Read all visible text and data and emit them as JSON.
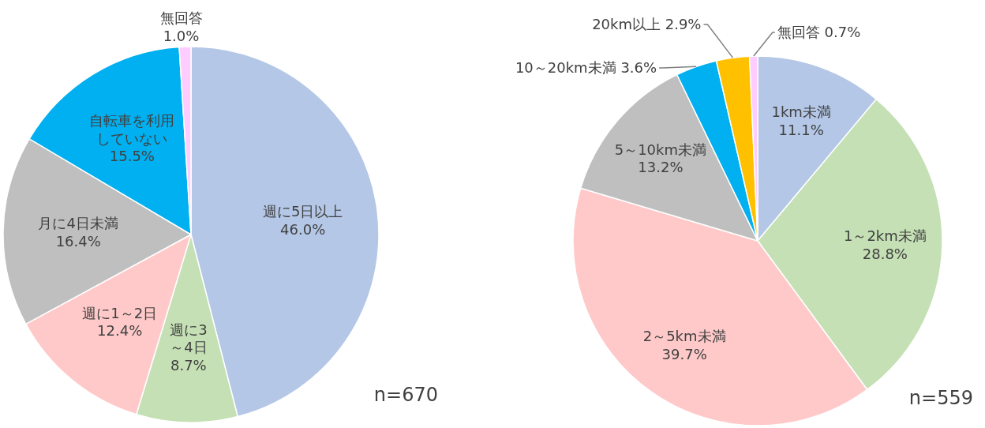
{
  "chart_data": [
    {
      "type": "pie",
      "categories": [
        "週に5日以上",
        "週に3～4日",
        "週に1～2日",
        "月に4日未満",
        "自転車を利用していない",
        "無回答"
      ],
      "values": [
        46.0,
        8.7,
        12.4,
        16.4,
        15.5,
        1.0
      ],
      "colors": [
        "#b4c7e7",
        "#c5e0b4",
        "#ffc9c9",
        "#bfbfbf",
        "#00b0f0",
        "#ffccff"
      ],
      "value_labels": [
        "46.0%",
        "8.7%",
        "12.4%",
        "16.4%",
        "15.5%",
        "1.0%"
      ],
      "annotations": [
        "n=670"
      ]
    },
    {
      "type": "pie",
      "categories": [
        "1km未満",
        "1～2km未満",
        "2～5km未満",
        "5～10km未満",
        "10～20km未満",
        "20km以上",
        "無回答"
      ],
      "values": [
        11.1,
        28.8,
        39.7,
        13.2,
        3.6,
        2.9,
        0.7
      ],
      "colors": [
        "#b4c7e7",
        "#c5e0b4",
        "#ffc9c9",
        "#bfbfbf",
        "#00b0f0",
        "#ffc000",
        "#ffccff"
      ],
      "value_labels": [
        "11.1%",
        "28.8%",
        "39.7%",
        "13.2%",
        "3.6%",
        "2.9%",
        "0.7%"
      ],
      "annotations": [
        "n=559"
      ]
    }
  ]
}
